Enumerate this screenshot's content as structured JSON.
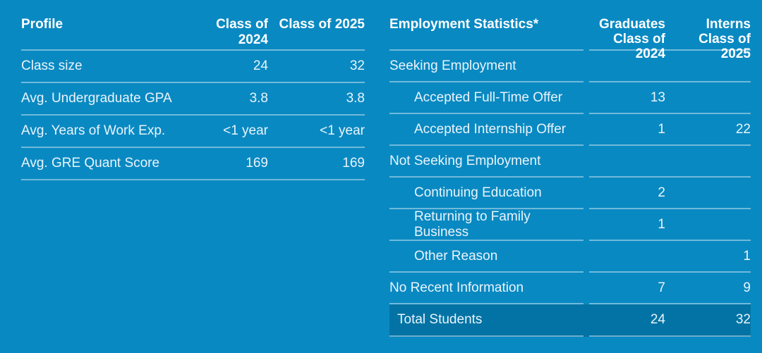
{
  "page": {
    "background_color": "#0989c2",
    "total_row_color": "#0273a4",
    "divider_color": "rgba(255,255,255,0.42)",
    "text_color": "#e9f4fb"
  },
  "profile_table": {
    "header": {
      "title": "Profile",
      "col1": "Class of 2024",
      "col2": "Class of 2025"
    },
    "rows": [
      {
        "label": "Class size",
        "col1": "24",
        "col2": "32"
      },
      {
        "label": "Avg. Undergraduate GPA",
        "col1": "3.8",
        "col2": "3.8"
      },
      {
        "label": "Avg. Years of Work Exp.",
        "col1": "<1 year",
        "col2": "<1 year"
      },
      {
        "label": "Avg. GRE Quant Score",
        "col1": "169",
        "col2": "169"
      }
    ]
  },
  "employment_table": {
    "header": {
      "title": "Employment Statistics*",
      "col1_line1": "Graduates",
      "col1_line2": "Class of 2024",
      "col2_line1": "Interns",
      "col2_line2": "Class of 2025"
    },
    "rows": [
      {
        "label": "Seeking Employment",
        "col1": "",
        "col2": "",
        "indent": false,
        "total": false
      },
      {
        "label": "Accepted Full-Time Offer",
        "col1": "13",
        "col2": "",
        "indent": true,
        "total": false
      },
      {
        "label": "Accepted Internship Offer",
        "col1": "1",
        "col2": "22",
        "indent": true,
        "total": false
      },
      {
        "label": "Not Seeking Employment",
        "col1": "",
        "col2": "",
        "indent": false,
        "total": false
      },
      {
        "label": "Continuing Education",
        "col1": "2",
        "col2": "",
        "indent": true,
        "total": false
      },
      {
        "label": "Returning to Family Business",
        "col1": "1",
        "col2": "",
        "indent": true,
        "total": false
      },
      {
        "label": "Other Reason",
        "col1": "",
        "col2": "1",
        "indent": true,
        "total": false
      },
      {
        "label": "No Recent Information",
        "col1": "7",
        "col2": "9",
        "indent": false,
        "total": false
      },
      {
        "label": "Total Students",
        "col1": "24",
        "col2": "32",
        "indent": false,
        "total": true
      }
    ]
  }
}
